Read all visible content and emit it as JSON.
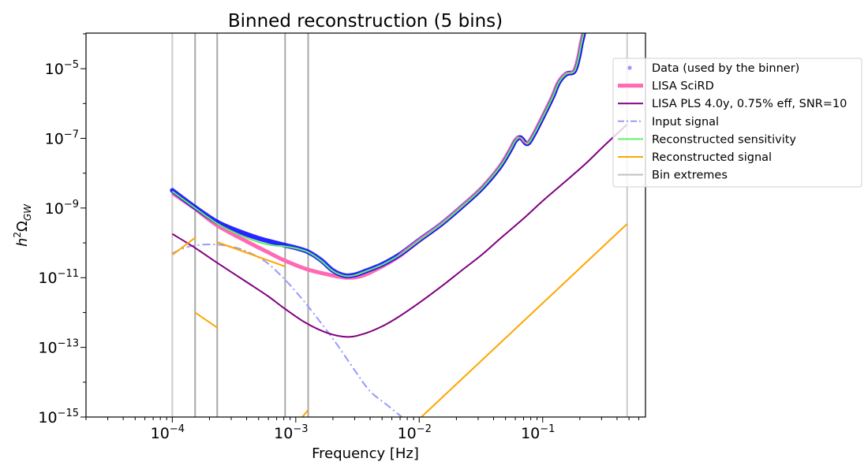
{
  "chart_data": {
    "type": "line",
    "title": "Binned reconstruction (5 bins)",
    "xlabel": "Frequency [Hz]",
    "ylabel": "h2ΩGW",
    "ylabel_parts": {
      "base": "h",
      "sup": "2",
      "omega": "Ω",
      "sub": "GW"
    },
    "xscale": "log",
    "yscale": "log",
    "xlim": [
      2e-05,
      0.68
    ],
    "ylim": [
      1e-15,
      0.000105
    ],
    "grid": false,
    "legend_position": "upper-right-outside",
    "x_ticks": [
      {
        "base": "10",
        "exp": "−4",
        "value": 0.0001
      },
      {
        "base": "10",
        "exp": "−3",
        "value": 0.001
      },
      {
        "base": "10",
        "exp": "−2",
        "value": 0.01
      },
      {
        "base": "10",
        "exp": "−1",
        "value": 0.1
      }
    ],
    "y_ticks": [
      {
        "base": "10",
        "exp": "−5",
        "value": 1e-05
      },
      {
        "base": "10",
        "exp": "−7",
        "value": 1e-07
      },
      {
        "base": "10",
        "exp": "−9",
        "value": 1e-09
      },
      {
        "base": "10",
        "exp": "−11",
        "value": 1e-11
      },
      {
        "base": "10",
        "exp": "−13",
        "value": 1e-13
      },
      {
        "base": "10",
        "exp": "−15",
        "value": 1e-15
      }
    ],
    "legend": [
      {
        "label": "Data (used by the binner)",
        "color": "#0000ff",
        "style": "marker"
      },
      {
        "label": "LISA SciRD",
        "color": "#ff69b4",
        "style": "thick"
      },
      {
        "label": "LISA PLS 4.0y, 0.75% eff, SNR=10",
        "color": "#800080",
        "style": "solid"
      },
      {
        "label": "Input signal",
        "color": "#9999ff",
        "style": "dashdot"
      },
      {
        "label": "Reconstructed sensitivity",
        "color": "#66ee66",
        "style": "solid"
      },
      {
        "label": "Reconstructed signal",
        "color": "#ffa500",
        "style": "solid"
      },
      {
        "label": "Bin extremes",
        "color": "#c0c0c0",
        "style": "solid"
      }
    ],
    "bin_extremes": [
      0.0001,
      0.000153,
      0.000231,
      0.00082,
      0.00126,
      0.483
    ],
    "series": [
      {
        "name": "LISA SciRD",
        "x": [
          0.0001,
          0.00015,
          0.00023,
          0.0004,
          0.0006,
          0.0008,
          0.0012,
          0.0018,
          0.0026,
          0.0035,
          0.005,
          0.007,
          0.01,
          0.015,
          0.022,
          0.032,
          0.045,
          0.055,
          0.06,
          0.066,
          0.075,
          0.085,
          0.1,
          0.12,
          0.135,
          0.155,
          0.18,
          0.195,
          0.205,
          0.215
        ],
        "y": [
          2.7e-09,
          1e-09,
          3.2e-10,
          1.1e-10,
          5.3e-11,
          3.2e-11,
          1.8e-11,
          1.25e-11,
          1e-11,
          1.15e-11,
          2.1e-11,
          4.3e-11,
          1.15e-10,
          3.3e-10,
          1.05e-09,
          3.6e-09,
          1.5e-08,
          4.8e-08,
          8.5e-08,
          1.05e-07,
          7e-08,
          1.3e-07,
          4e-07,
          1.5e-06,
          4e-06,
          7e-06,
          8.3e-06,
          2e-05,
          5e-05,
          0.000105
        ]
      },
      {
        "name": "Data (used by the binner)",
        "x": [
          0.0001,
          0.00015,
          0.00023,
          0.00035,
          0.0005,
          0.00065,
          0.00082,
          0.001,
          0.00126,
          0.0016,
          0.002,
          0.0025,
          0.003,
          0.0035,
          0.005,
          0.007,
          0.01,
          0.015,
          0.022,
          0.032,
          0.045,
          0.055,
          0.06,
          0.066,
          0.075,
          0.085,
          0.1,
          0.12,
          0.135,
          0.155,
          0.18,
          0.195,
          0.205,
          0.215
        ],
        "y": [
          3.2e-09,
          1.1e-09,
          4e-10,
          2.1e-10,
          1.35e-10,
          1.05e-10,
          8.5e-11,
          7.2e-11,
          5.5e-11,
          3.2e-11,
          1.6e-11,
          1.15e-11,
          1.2e-11,
          1.45e-11,
          2.4e-11,
          4.7e-11,
          1.2e-10,
          3.4e-10,
          1.07e-09,
          3.6e-09,
          1.5e-08,
          4.8e-08,
          8.5e-08,
          1.05e-07,
          7e-08,
          1.3e-07,
          4e-07,
          1.5e-06,
          4e-06,
          7e-06,
          8.3e-06,
          2e-05,
          5e-05,
          0.000105
        ]
      },
      {
        "name": "Reconstructed sensitivity",
        "x": [
          0.0001,
          0.00015,
          0.00023,
          0.00035,
          0.0005,
          0.00065,
          0.00082,
          0.001,
          0.00126,
          0.0016,
          0.002,
          0.0025,
          0.003,
          0.0035,
          0.005,
          0.007,
          0.01,
          0.015,
          0.022,
          0.032,
          0.045,
          0.055,
          0.06,
          0.066,
          0.075,
          0.085,
          0.1,
          0.12,
          0.135,
          0.155,
          0.18,
          0.195,
          0.205,
          0.215
        ],
        "y": [
          3e-09,
          1.05e-09,
          3.6e-10,
          1.7e-10,
          1.05e-10,
          8.5e-11,
          7.9e-11,
          7e-11,
          5.4e-11,
          3.1e-11,
          1.55e-11,
          1.12e-11,
          1.17e-11,
          1.42e-11,
          2.35e-11,
          4.6e-11,
          1.18e-10,
          3.35e-10,
          1.06e-09,
          3.6e-09,
          1.5e-08,
          4.8e-08,
          8.5e-08,
          1.05e-07,
          7e-08,
          1.3e-07,
          4e-07,
          1.5e-06,
          4e-06,
          7e-06,
          8.3e-06,
          2e-05,
          5e-05,
          0.000105
        ]
      },
      {
        "name": "LISA PLS 4.0y, 0.75% eff, SNR=10",
        "x": [
          0.0001,
          0.00015,
          0.00023,
          0.0004,
          0.0006,
          0.0008,
          0.0012,
          0.0018,
          0.0026,
          0.0035,
          0.005,
          0.007,
          0.01,
          0.015,
          0.022,
          0.032,
          0.045,
          0.07,
          0.1,
          0.15,
          0.22,
          0.32,
          0.483
        ],
        "y": [
          1.8e-10,
          7.5e-11,
          2.7e-11,
          7.5e-12,
          2.9e-12,
          1.35e-12,
          5.1e-13,
          2.6e-13,
          2e-13,
          2.4e-13,
          4e-13,
          8e-13,
          1.9e-12,
          5.5e-12,
          1.6e-11,
          4.5e-11,
          1.3e-10,
          5e-10,
          1.6e-09,
          5.5e-09,
          1.8e-08,
          6.5e-08,
          2.5e-07
        ]
      },
      {
        "name": "Input signal",
        "x": [
          0.0001,
          0.00013,
          0.00017,
          0.00022,
          0.00028,
          0.00036,
          0.00046,
          0.0006,
          0.0008,
          0.001,
          0.0013,
          0.0017,
          0.0022,
          0.003,
          0.004,
          0.0055,
          0.0075
        ],
        "y": [
          5e-11,
          7.5e-11,
          8.8e-11,
          9e-11,
          8.2e-11,
          6.6e-11,
          4.5e-11,
          2.5e-11,
          9.5e-12,
          4e-12,
          1.3e-12,
          3.8e-13,
          1.1e-13,
          2.2e-14,
          5.5e-15,
          2.2e-15,
          9e-16
        ]
      },
      {
        "name": "Reconstructed signal (bin 1)",
        "x": [
          0.0001,
          0.000153
        ],
        "y": [
          4.5e-11,
          1.4e-10
        ]
      },
      {
        "name": "Reconstructed signal (bin 2)",
        "x": [
          0.000153,
          0.000231
        ],
        "y": [
          1e-12,
          3.7e-13
        ]
      },
      {
        "name": "Reconstructed signal (bin 3)",
        "x": [
          0.000231,
          0.00082
        ],
        "y": [
          1.05e-10,
          2.1e-11
        ]
      },
      {
        "name": "Reconstructed signal (bin 4)",
        "x": [
          0.00113,
          0.00126
        ],
        "y": [
          1e-15,
          1.6e-15
        ]
      },
      {
        "name": "Reconstructed signal (bin 5)",
        "x": [
          0.0104,
          0.483
        ],
        "y": [
          1e-15,
          3.5e-10
        ]
      }
    ]
  }
}
